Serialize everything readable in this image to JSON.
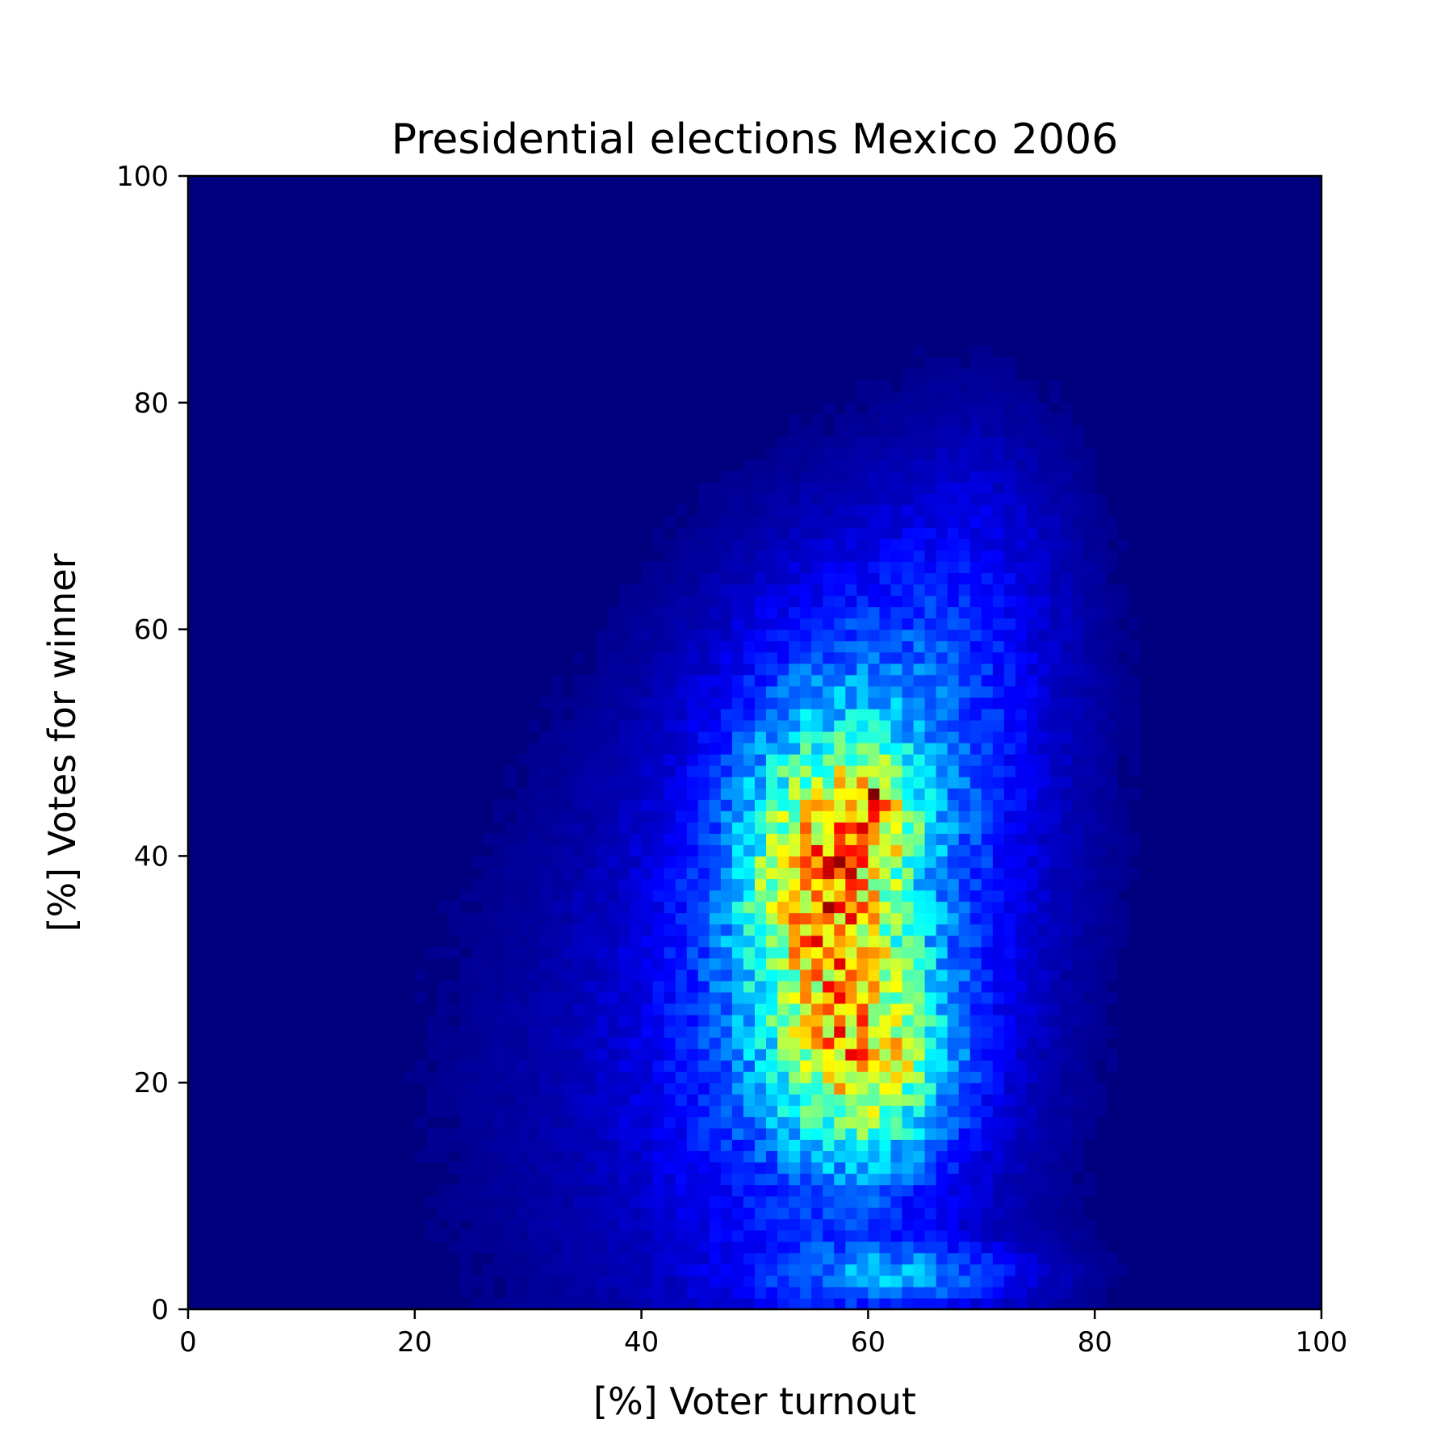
{
  "chart_data": {
    "type": "heatmap",
    "title": "Presidential elections Mexico 2006",
    "xlabel": "[%] Voter turnout",
    "ylabel": "[%] Votes for winner",
    "xlim": [
      0,
      100
    ],
    "ylim": [
      0,
      100
    ],
    "x_ticks": [
      0,
      20,
      40,
      60,
      80,
      100
    ],
    "y_ticks": [
      0,
      20,
      40,
      60,
      80,
      100
    ],
    "x_tick_labels": [
      "0",
      "20",
      "40",
      "60",
      "80",
      "100"
    ],
    "y_tick_labels": [
      "0",
      "20",
      "40",
      "60",
      "80",
      "100"
    ],
    "bins": 100,
    "colormap": "jet",
    "grid": false,
    "background_color": "#00007f",
    "peak_cell": {
      "x": 60.5,
      "y": 45.5
    },
    "density_components": [
      {
        "center": [
          56,
          38
        ],
        "spread": [
          4.5,
          8
        ],
        "weight": 1.0
      },
      {
        "center": [
          60,
          22
        ],
        "spread": [
          5,
          6
        ],
        "weight": 0.9
      },
      {
        "center": [
          61,
          44
        ],
        "spread": [
          2.5,
          3
        ],
        "weight": 0.5
      },
      {
        "center": [
          57,
          30
        ],
        "spread": [
          10,
          18
        ],
        "weight": 0.55
      },
      {
        "center": [
          62,
          50
        ],
        "spread": [
          9,
          12
        ],
        "weight": 0.35
      },
      {
        "center": [
          63,
          3
        ],
        "spread": [
          8,
          2
        ],
        "weight": 0.45
      },
      {
        "center": [
          70,
          66
        ],
        "spread": [
          6,
          10
        ],
        "weight": 0.15
      },
      {
        "center": [
          45,
          20
        ],
        "spread": [
          15,
          20
        ],
        "weight": 0.12
      }
    ]
  }
}
